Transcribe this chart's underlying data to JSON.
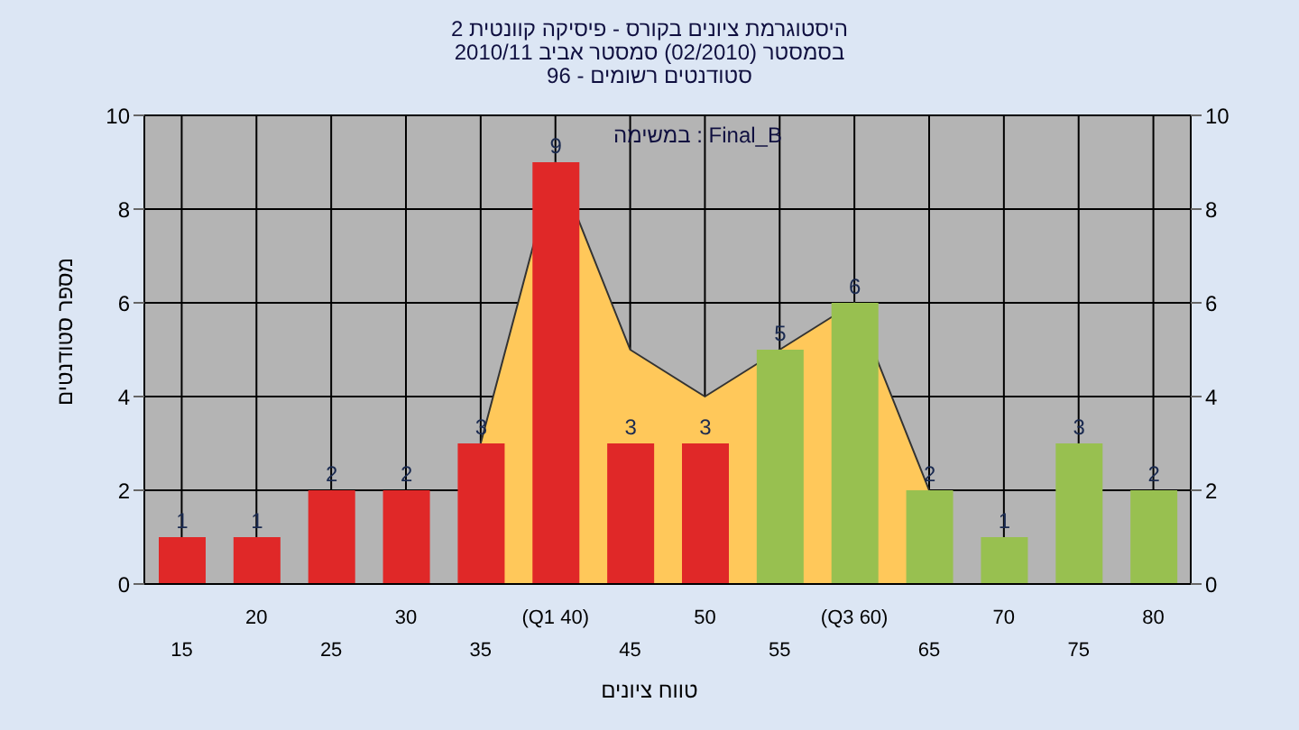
{
  "chart_data": {
    "type": "bar",
    "title": "היסטוגרמת ציונים בקורס - פיסיקה קוונטית 2",
    "subtitle": "בסמסטר  (02/2010)  סמסטר אביב 2010/11\nסטודנטים רשומים - 96",
    "xlabel": "טווח ציונים",
    "ylabel": "מספר סטודנטים",
    "annotations": [
      "במשימה : Final_B"
    ],
    "categories": [
      "15",
      "20",
      "25",
      "30",
      "35",
      "(Q1 40)",
      "45",
      "50",
      "55",
      "(Q3 60)",
      "65",
      "70",
      "75",
      "80"
    ],
    "series": [
      {
        "type": "area",
        "color": "#ffc85a",
        "values": [
          null,
          null,
          null,
          null,
          3,
          9,
          5,
          4,
          5,
          6,
          2,
          null,
          null,
          null
        ]
      },
      {
        "colors": [
          "#e02828",
          "#e02828",
          "#e02828",
          "#e02828",
          "#e02828",
          "#e02828",
          "#e02828",
          "#e02828",
          "#98c050",
          "#98c050",
          "#98c050",
          "#98c050",
          "#98c050",
          "#98c050"
        ],
        "values": [
          1,
          1,
          2,
          2,
          3,
          9,
          3,
          3,
          5,
          6,
          2,
          1,
          3,
          2
        ],
        "data_labels": true
      }
    ],
    "ylim": [
      0,
      10
    ],
    "yticks": [
      0,
      2,
      4,
      6,
      8,
      10
    ],
    "y2lim": [
      0,
      10
    ],
    "y2ticks": [
      0,
      2,
      4,
      6,
      8,
      10
    ],
    "grid": true
  }
}
